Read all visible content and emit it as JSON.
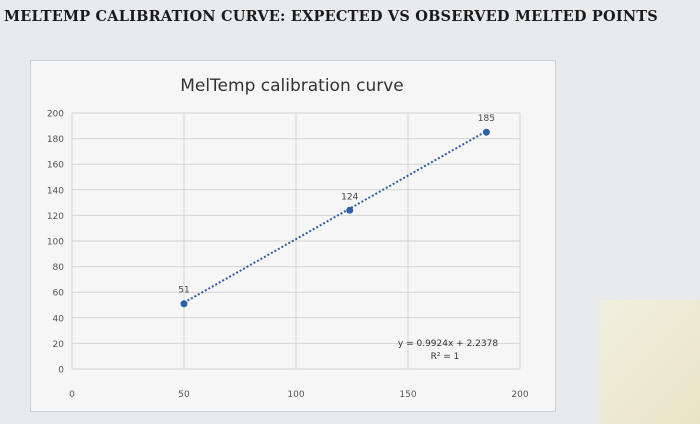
{
  "page": {
    "heading": "MELTEMP CALIBRATION CURVE: EXPECTED VS OBSERVED MELTED POINTS"
  },
  "chart_data": {
    "type": "scatter",
    "title": "MelTemp calibration curve",
    "xlabel": "",
    "ylabel": "",
    "xlim": [
      0,
      200
    ],
    "ylim": [
      0,
      200
    ],
    "x_ticks": [
      0,
      50,
      100,
      150,
      200
    ],
    "y_ticks": [
      0,
      20,
      40,
      60,
      80,
      100,
      120,
      140,
      160,
      180,
      200
    ],
    "grid": true,
    "legend": "none",
    "points": [
      {
        "x": 50,
        "y": 51,
        "label": "51"
      },
      {
        "x": 124,
        "y": 124,
        "label": "124"
      },
      {
        "x": 185,
        "y": 185,
        "label": "185"
      }
    ],
    "trendline": {
      "type": "linear",
      "slope": 0.9924,
      "intercept": 2.2378,
      "equation": "y = 0.9924x + 2.2378",
      "r_squared": "R² = 1"
    },
    "colors": {
      "marker": "#2e5fa8",
      "trendline": "#2e5fa8",
      "grid": "#d4d4d4"
    }
  }
}
